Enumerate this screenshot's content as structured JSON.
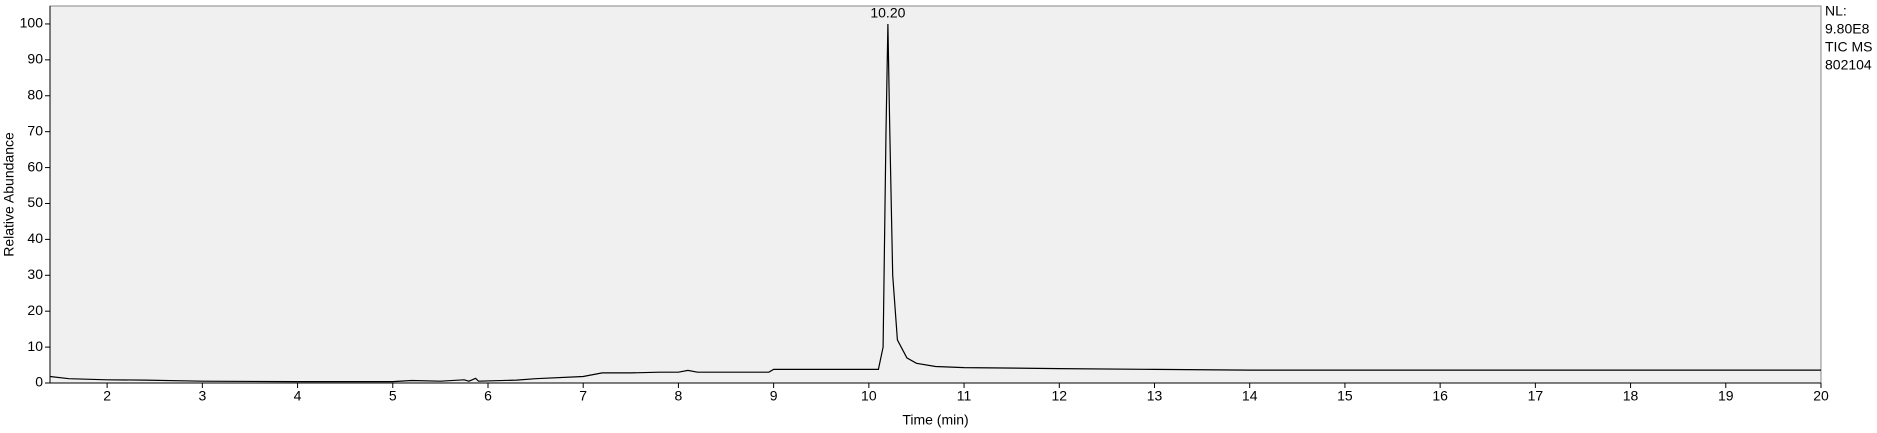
{
  "chart_data": {
    "type": "line",
    "x_label": "Time (min)",
    "y_label": "Relative Abundance",
    "side_notes": [
      "NL:",
      "9.80E8",
      "TIC  MS",
      "802104"
    ],
    "annotations": [
      {
        "text": "10.20",
        "x": 10.2,
        "y": 100
      }
    ],
    "x": [
      1.4,
      1.6,
      2.0,
      2.4,
      3.0,
      4.0,
      5.0,
      5.2,
      5.5,
      5.75,
      5.8,
      5.87,
      5.9,
      6.3,
      6.5,
      7.0,
      7.2,
      7.5,
      7.8,
      8.0,
      8.1,
      8.2,
      8.95,
      9.0,
      9.5,
      10.1,
      10.15,
      10.18,
      10.2,
      10.22,
      10.25,
      10.3,
      10.4,
      10.5,
      10.7,
      11.0,
      12.0,
      13.0,
      14.0,
      16.0,
      18.0,
      20.0
    ],
    "series": [
      {
        "name": "TIC",
        "color": "#000000",
        "values": [
          1.8,
          1.2,
          0.9,
          0.8,
          0.5,
          0.4,
          0.4,
          0.7,
          0.5,
          0.9,
          0.5,
          1.3,
          0.5,
          0.8,
          1.2,
          1.8,
          2.8,
          2.8,
          3.0,
          3.0,
          3.5,
          3.0,
          3.0,
          3.8,
          3.8,
          3.8,
          10,
          70,
          100,
          70,
          30,
          12,
          7,
          5.5,
          4.6,
          4.3,
          4.0,
          3.8,
          3.6,
          3.6,
          3.6,
          3.6
        ]
      }
    ],
    "xlim": [
      1.4,
      20
    ],
    "ylim": [
      0,
      105
    ],
    "xticks": [
      2,
      3,
      4,
      5,
      6,
      7,
      8,
      9,
      10,
      11,
      12,
      13,
      14,
      15,
      16,
      17,
      18,
      19,
      20
    ],
    "yticks": [
      0,
      10,
      20,
      30,
      40,
      50,
      60,
      70,
      80,
      90,
      100
    ],
    "plot_background": "#f0f0f0"
  }
}
